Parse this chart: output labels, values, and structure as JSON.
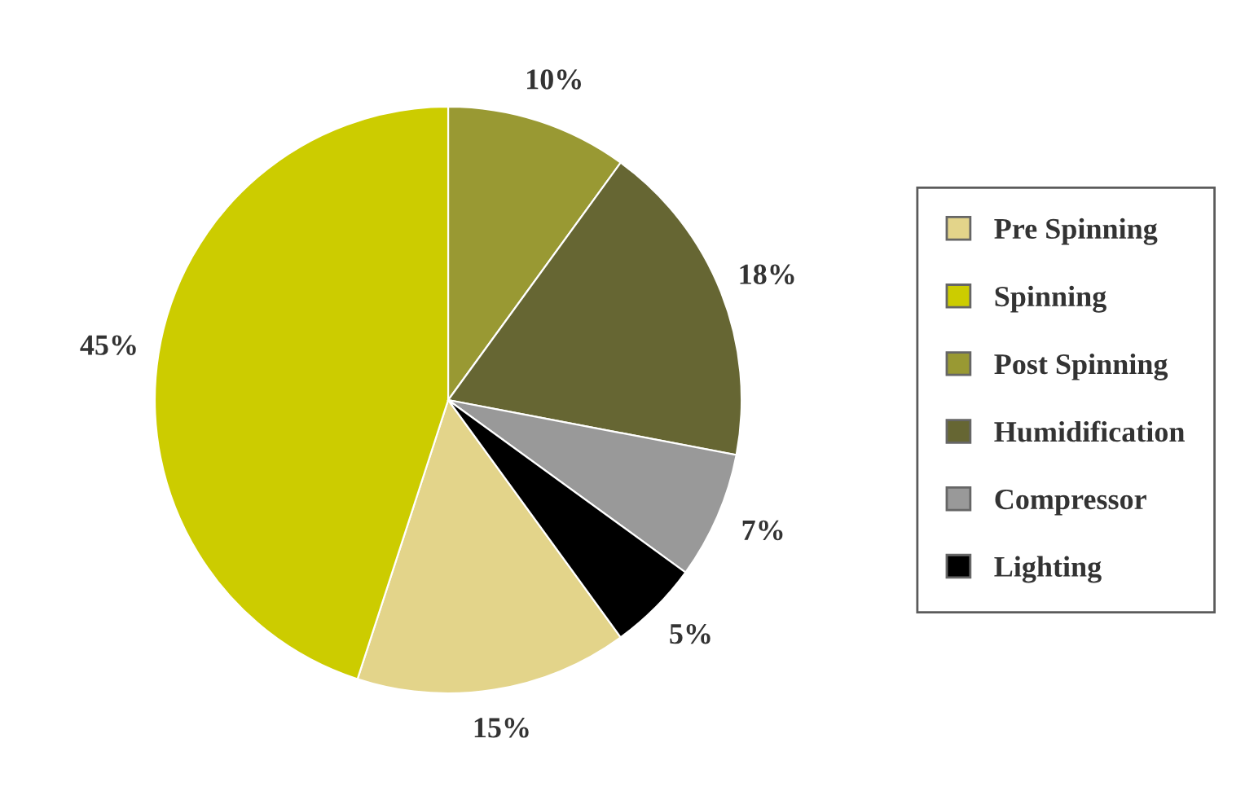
{
  "chart_data": {
    "type": "pie",
    "categories": [
      "Pre Spinning",
      "Spinning",
      "Post Spinning",
      "Humidification",
      "Compressor",
      "Lighting"
    ],
    "values": [
      15,
      45,
      10,
      18,
      7,
      5
    ],
    "colors": [
      "#e3d48a",
      "#cccc00",
      "#999933",
      "#666633",
      "#999999",
      "#000000"
    ],
    "value_labels": [
      "15%",
      "45%",
      "10%",
      "18%",
      "7%",
      "5%"
    ],
    "legend": "right"
  }
}
